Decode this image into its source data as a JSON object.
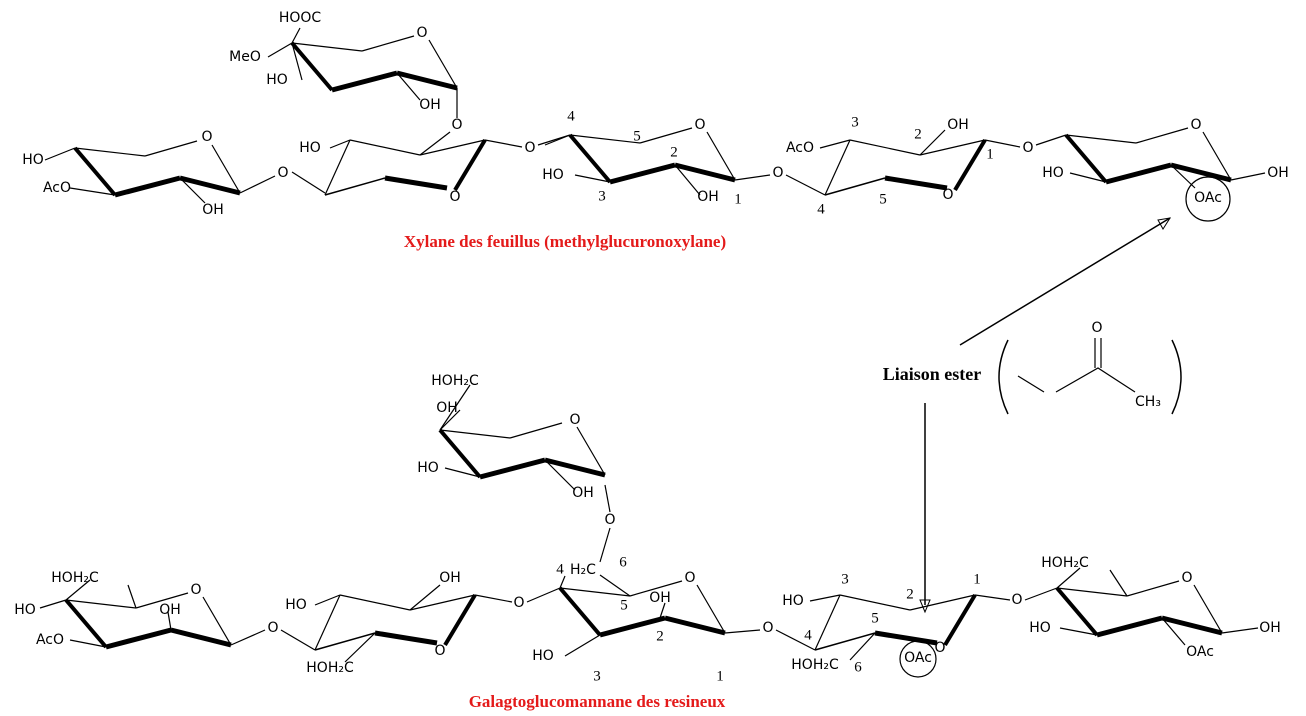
{
  "xylan": {
    "title": "Xylane des feuillus (methylglucuronoxylane)",
    "labels": [
      "HOOC",
      "MeO",
      "O",
      "HO",
      "OH",
      "O",
      "HO",
      "O",
      "AcO",
      "OH",
      "O",
      "HO",
      "O",
      "O",
      "4",
      "5",
      "O",
      "2",
      "HO",
      "3",
      "OH",
      "1",
      "O",
      "AcO",
      "3",
      "2",
      "OH",
      "1",
      "4",
      "5",
      "O",
      "O",
      "O",
      "HO",
      "OH",
      "OAc"
    ]
  },
  "galacto": {
    "title": "Galagtoglucomannane des resineux",
    "labels": [
      "HOH₂C",
      "O",
      "OH",
      "HO",
      "OH",
      "O",
      "HOH₂C",
      "O",
      "OH",
      "HO",
      "AcO",
      "O",
      "OH",
      "HO",
      "O",
      "HOH₂C",
      "O",
      "4",
      "H₂C",
      "6",
      "O",
      "5",
      "OH",
      "HO",
      "2",
      "3",
      "1",
      "O",
      "3",
      "HO",
      "2",
      "1",
      "OAc",
      "4",
      "5",
      "O",
      "HOH₂C",
      "6",
      "O",
      "HOH₂C",
      "O",
      "HO",
      "OH",
      "OAc"
    ]
  },
  "ester": {
    "label": "Liaison ester",
    "labels": [
      "O",
      "CH₃"
    ]
  }
}
